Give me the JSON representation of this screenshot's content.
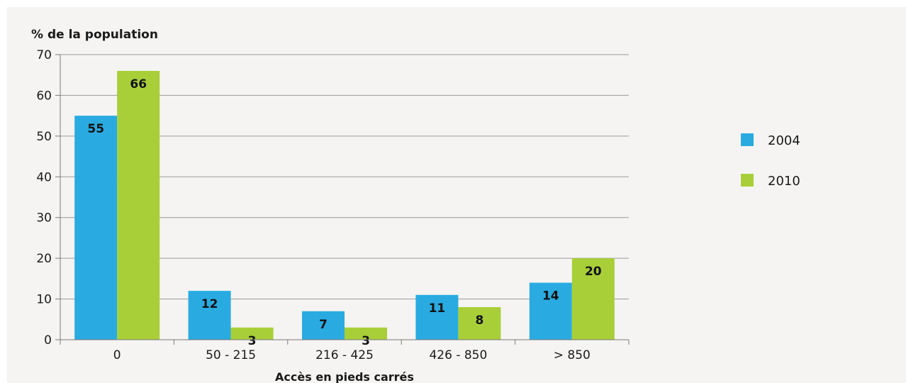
{
  "chart_data": {
    "type": "bar",
    "categories": [
      "0",
      "50 - 215",
      "216 - 425",
      "426 - 850",
      "> 850"
    ],
    "series": [
      {
        "name": "2004",
        "values": [
          55,
          12,
          7,
          11,
          14
        ],
        "color": "#29abe2"
      },
      {
        "name": "2010",
        "values": [
          66,
          3,
          3,
          8,
          20
        ],
        "color": "#a8cf38"
      }
    ],
    "ylabel": "% de la population",
    "xlabel": "Accès en pieds carrés",
    "ylim": [
      0,
      70
    ],
    "yticks": [
      0,
      10,
      20,
      30,
      40,
      50,
      60,
      70
    ],
    "grid": true,
    "legend_position": "right",
    "data_labels": true
  }
}
